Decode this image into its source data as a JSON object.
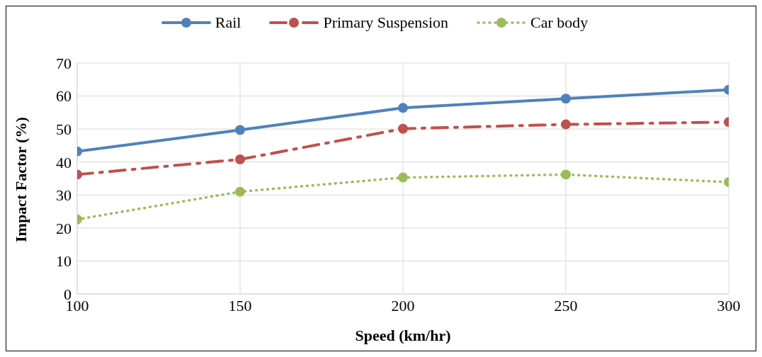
{
  "chart_data": {
    "type": "line",
    "xlabel": "Speed (km/hr)",
    "ylabel": "Impact Factor (%)",
    "x": [
      100,
      150,
      200,
      250,
      300
    ],
    "xlim": [
      100,
      300
    ],
    "xticks": [
      100,
      150,
      200,
      250,
      300
    ],
    "ylim": [
      0,
      70
    ],
    "yticks": [
      0,
      10,
      20,
      30,
      40,
      50,
      60,
      70
    ],
    "grid": true,
    "legend": "top",
    "marker": "circle",
    "series": [
      {
        "name": "Rail",
        "color": "#4f81bd",
        "line_style": "solid",
        "values": [
          43.2,
          49.7,
          56.4,
          59.2,
          61.9
        ]
      },
      {
        "name": "Primary Suspension",
        "color": "#c0504d",
        "line_style": "dashed",
        "values": [
          36.2,
          40.8,
          50.1,
          51.4,
          52.1
        ]
      },
      {
        "name": "Car body",
        "color": "#9bbb59",
        "line_style": "dotted",
        "values": [
          22.6,
          31.0,
          35.3,
          36.2,
          33.9
        ]
      }
    ]
  }
}
